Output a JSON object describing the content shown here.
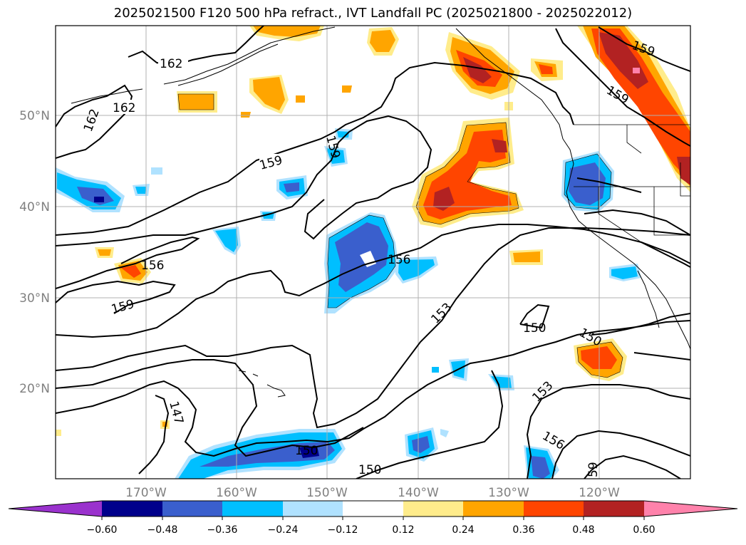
{
  "title": "2025021500 F120 500 hPa refract., IVT Landfall PC (2025021800 - 2025022012)",
  "map": {
    "projection": "equirectangular",
    "lon_range": [
      -180,
      -110
    ],
    "lat_range": [
      10,
      60
    ],
    "grid": true,
    "lat_ticks": [
      "50°N",
      "40°N",
      "30°N",
      "20°N"
    ],
    "lon_ticks": [
      "170°W",
      "160°W",
      "150°W",
      "140°W",
      "130°W",
      "120°W"
    ],
    "contour_labels": [
      "162",
      "162",
      "162",
      "159",
      "159",
      "159",
      "159",
      "159",
      "156",
      "156",
      "156",
      "153",
      "153",
      "150",
      "150",
      "150",
      "150",
      "147",
      "59"
    ]
  },
  "colorbar": {
    "ticks": [
      "−0.60",
      "−0.48",
      "−0.36",
      "−0.24",
      "−0.12",
      "0.12",
      "0.24",
      "0.36",
      "0.48",
      "0.60"
    ],
    "colors": [
      "#9a32cd",
      "#00008b",
      "#3a5fcd",
      "#00bfff",
      "#b0e2ff",
      "#ffffff",
      "#ffec8b",
      "#ffa500",
      "#ff4500",
      "#b22222",
      "#ff82ab"
    ]
  }
}
